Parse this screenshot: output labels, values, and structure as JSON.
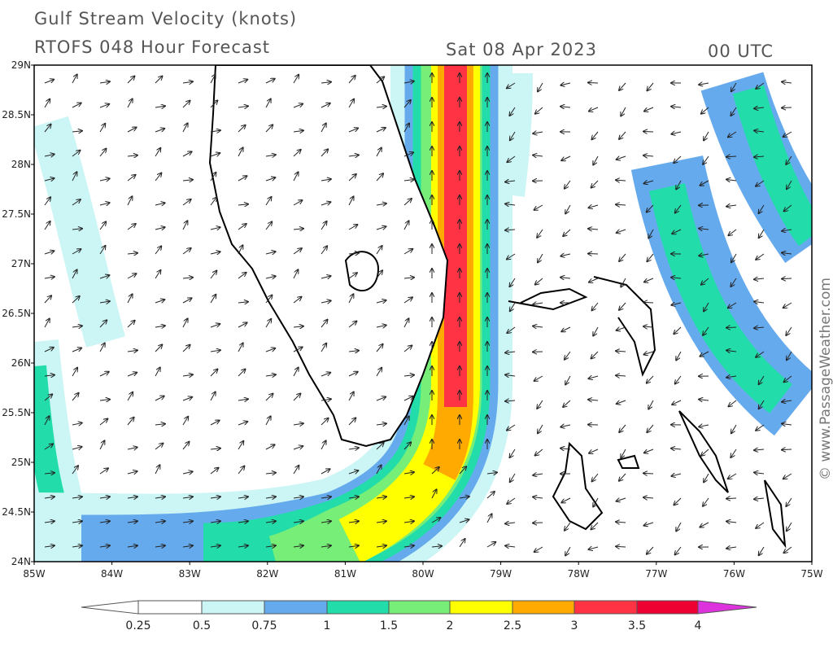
{
  "header": {
    "title": "Gulf Stream Velocity (knots)",
    "subtitle": "RTOFS 048 Hour Forecast",
    "date": "Sat 08 Apr 2023",
    "time": "00 UTC"
  },
  "axes": {
    "latitudes": [
      "29N",
      "28.5N",
      "28N",
      "27.5N",
      "27N",
      "26.5N",
      "26N",
      "25.5N",
      "25N",
      "24.5N",
      "24N"
    ],
    "longitudes": [
      "85W",
      "84W",
      "83W",
      "82W",
      "81W",
      "80W",
      "79W",
      "78W",
      "77W",
      "76W",
      "75W"
    ]
  },
  "legend": {
    "labels": [
      "0.25",
      "0.5",
      "0.75",
      "1",
      "1.5",
      "2",
      "2.5",
      "3",
      "3.5",
      "4"
    ]
  },
  "watermark": "© www.PassageWeather.com"
}
